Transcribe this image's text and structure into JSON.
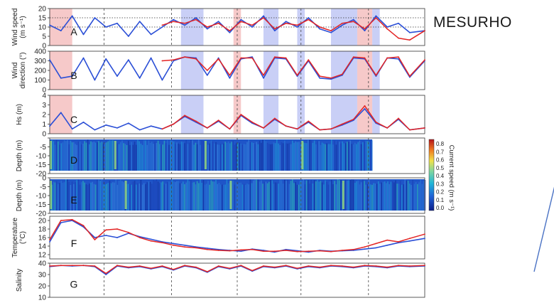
{
  "slide_title": "MESURHO",
  "colors": {
    "obs": "#2b4fd6",
    "model": "#e32424",
    "highlight_red": "#f6c9c9",
    "highlight_blue": "#c9cff6",
    "arrow": "#4a72c4"
  },
  "chart_data": {
    "type": "line",
    "time_axis": {
      "range": [
        0,
        1
      ],
      "tick_labels": []
    },
    "highlight_spans": [
      {
        "color": "red",
        "from": 0.0,
        "to": 0.06
      },
      {
        "color": "blue",
        "from": 0.35,
        "to": 0.41
      },
      {
        "color": "red",
        "from": 0.49,
        "to": 0.51
      },
      {
        "color": "blue",
        "from": 0.57,
        "to": 0.61
      },
      {
        "color": "blue",
        "from": 0.66,
        "to": 0.68
      },
      {
        "color": "blue",
        "from": 0.75,
        "to": 0.82
      },
      {
        "color": "red",
        "from": 0.82,
        "to": 0.86
      },
      {
        "color": "blue",
        "from": 0.86,
        "to": 0.88
      }
    ],
    "panels": [
      {
        "letter": "A",
        "ylabel": [
          "Wind speed",
          "(m s⁻¹)"
        ],
        "ylim": [
          0,
          20
        ],
        "yticks": [
          0,
          5,
          10,
          15,
          20
        ],
        "ref_lines": [
          15,
          10
        ],
        "series": [
          {
            "role": "obs",
            "x": [
              0,
              0.03,
              0.06,
              0.09,
              0.12,
              0.15,
              0.18,
              0.21,
              0.24,
              0.27,
              0.3,
              0.33,
              0.36,
              0.39,
              0.42,
              0.45,
              0.48,
              0.51,
              0.54,
              0.57,
              0.6,
              0.63,
              0.66,
              0.69,
              0.72,
              0.75,
              0.78,
              0.81,
              0.84,
              0.87,
              0.9,
              0.93,
              0.96,
              1.0
            ],
            "y": [
              11,
              8,
              16,
              6,
              15,
              10,
              12,
              5,
              13,
              6,
              10,
              14,
              11,
              15,
              9,
              13,
              7,
              14,
              10,
              16,
              8,
              13,
              10,
              15,
              9,
              7,
              11,
              14,
              8,
              16,
              10,
              12,
              7,
              8
            ]
          },
          {
            "role": "model",
            "x": [
              0.3,
              0.33,
              0.36,
              0.39,
              0.42,
              0.45,
              0.48,
              0.51,
              0.54,
              0.57,
              0.6,
              0.63,
              0.66,
              0.69,
              0.72,
              0.75,
              0.78,
              0.81,
              0.84,
              0.87,
              0.9,
              0.93,
              0.96,
              1.0
            ],
            "y": [
              11,
              13,
              12,
              14,
              10,
              12,
              8,
              13,
              11,
              15,
              9,
              12,
              11,
              14,
              10,
              8,
              12,
              13,
              9,
              15,
              9,
              4,
              3,
              8
            ]
          }
        ]
      },
      {
        "letter": "B",
        "ylabel": [
          "Wind",
          "direction (°)"
        ],
        "ylim": [
          0,
          400
        ],
        "yticks": [
          0,
          100,
          200,
          300,
          400
        ],
        "series": [
          {
            "role": "obs",
            "x": [
              0,
              0.03,
              0.06,
              0.09,
              0.12,
              0.15,
              0.18,
              0.21,
              0.24,
              0.27,
              0.3,
              0.33,
              0.36,
              0.39,
              0.42,
              0.45,
              0.48,
              0.51,
              0.54,
              0.57,
              0.6,
              0.63,
              0.66,
              0.69,
              0.72,
              0.75,
              0.78,
              0.81,
              0.84,
              0.87,
              0.9,
              0.93,
              0.96,
              1.0
            ],
            "y": [
              310,
              120,
              140,
              330,
              100,
              320,
              140,
              310,
              120,
              330,
              100,
              300,
              340,
              330,
              150,
              330,
              120,
              320,
              340,
              120,
              330,
              320,
              140,
              300,
              120,
              110,
              150,
              330,
              320,
              140,
              330,
              320,
              130,
              300
            ]
          },
          {
            "role": "model",
            "x": [
              0.3,
              0.33,
              0.36,
              0.39,
              0.42,
              0.45,
              0.48,
              0.51,
              0.54,
              0.57,
              0.6,
              0.63,
              0.66,
              0.69,
              0.72,
              0.75,
              0.78,
              0.81,
              0.84,
              0.87,
              0.9,
              0.93,
              0.96,
              1.0
            ],
            "y": [
              300,
              310,
              340,
              320,
              200,
              320,
              150,
              330,
              330,
              150,
              340,
              330,
              150,
              310,
              140,
              120,
              160,
              340,
              330,
              150,
              330,
              340,
              140,
              310
            ]
          }
        ]
      },
      {
        "letter": "C",
        "ylabel": [
          "Hs (m)"
        ],
        "ylim": [
          0,
          4
        ],
        "yticks": [
          0,
          1,
          2,
          3,
          4
        ],
        "series": [
          {
            "role": "obs",
            "x": [
              0,
              0.03,
              0.06,
              0.09,
              0.12,
              0.15,
              0.18,
              0.21,
              0.24,
              0.27,
              0.3,
              0.33,
              0.36,
              0.39,
              0.42,
              0.45,
              0.48,
              0.51,
              0.54,
              0.57,
              0.6,
              0.63,
              0.66,
              0.69,
              0.72,
              0.75,
              0.78,
              0.81,
              0.84,
              0.87,
              0.9,
              0.93,
              0.96,
              1.0
            ],
            "y": [
              0.8,
              2.2,
              0.5,
              1.2,
              0.4,
              0.9,
              0.6,
              1.1,
              0.4,
              0.8,
              0.5,
              1.0,
              1.8,
              1.2,
              0.6,
              1.3,
              0.5,
              1.9,
              1.1,
              0.6,
              1.5,
              0.8,
              0.5,
              1.2,
              0.4,
              0.5,
              0.9,
              1.4,
              2.6,
              1.1,
              0.6,
              1.5,
              0.4,
              0.6
            ]
          },
          {
            "role": "model",
            "x": [
              0.3,
              0.33,
              0.36,
              0.39,
              0.42,
              0.45,
              0.48,
              0.51,
              0.54,
              0.57,
              0.6,
              0.63,
              0.66,
              0.69,
              0.72,
              0.75,
              0.78,
              0.81,
              0.84,
              0.87,
              0.9,
              0.93,
              0.96,
              1.0
            ],
            "y": [
              0.5,
              1.0,
              1.9,
              1.3,
              0.6,
              1.4,
              0.5,
              2.0,
              1.2,
              0.6,
              1.6,
              0.8,
              0.5,
              1.3,
              0.4,
              0.5,
              1.0,
              1.5,
              2.9,
              1.2,
              0.6,
              1.6,
              0.4,
              0.6
            ]
          }
        ]
      },
      {
        "letter": "D",
        "ylabel": [
          "Depth (m)"
        ],
        "kind": "heatmap",
        "ylim": [
          -20,
          0
        ],
        "yticks": [
          -20,
          -15,
          -10,
          -5,
          0
        ],
        "ytick_labels": [
          "-20",
          "-15",
          "-10",
          "-5",
          ""
        ],
        "data_extent": [
          0,
          0.86
        ]
      },
      {
        "letter": "E",
        "ylabel": [
          "Depth (m)"
        ],
        "kind": "heatmap",
        "ylim": [
          -20,
          0
        ],
        "yticks": [
          -20,
          -15,
          -10,
          -5,
          0
        ],
        "ytick_labels": [
          "-20",
          "-15",
          "-10",
          "-5",
          "0"
        ],
        "data_extent": [
          0,
          1
        ]
      },
      {
        "letter": "F",
        "ylabel": [
          "Temperature",
          "(°C)"
        ],
        "ylim": [
          11,
          21
        ],
        "yticks": [
          12,
          14,
          16,
          18,
          20
        ],
        "series": [
          {
            "role": "obs",
            "x": [
              0,
              0.03,
              0.06,
              0.09,
              0.12,
              0.15,
              0.18,
              0.21,
              0.24,
              0.27,
              0.3,
              0.33,
              0.36,
              0.39,
              0.42,
              0.45,
              0.48,
              0.51,
              0.54,
              0.57,
              0.6,
              0.63,
              0.66,
              0.69,
              0.72,
              0.75,
              0.78,
              0.81,
              0.84,
              0.87,
              0.9,
              0.93,
              0.96,
              1.0
            ],
            "y": [
              15,
              19.5,
              20,
              18.5,
              16,
              16.5,
              16,
              17,
              16.2,
              15.6,
              15,
              14.6,
              14.2,
              13.8,
              13.5,
              13.2,
              13.0,
              12.8,
              13.3,
              13.0,
              12.6,
              13.2,
              12.9,
              12.6,
              13.0,
              12.8,
              12.9,
              13.0,
              13.3,
              13.6,
              14.2,
              14.8,
              15.2,
              15.8
            ]
          },
          {
            "role": "model",
            "x": [
              0,
              0.03,
              0.06,
              0.09,
              0.12,
              0.15,
              0.18,
              0.21,
              0.24,
              0.27,
              0.3,
              0.33,
              0.36,
              0.39,
              0.42,
              0.45,
              0.48,
              0.51,
              0.54,
              0.57,
              0.6,
              0.63,
              0.66,
              0.69,
              0.72,
              0.75,
              0.78,
              0.81,
              0.84,
              0.87,
              0.9,
              0.93,
              0.96,
              1.0
            ],
            "y": [
              15.5,
              20,
              20.2,
              18.8,
              15.5,
              17.8,
              18.0,
              17.2,
              16.0,
              15.2,
              14.8,
              14.2,
              13.8,
              13.6,
              13.2,
              13.0,
              12.9,
              13.1,
              13.2,
              12.8,
              12.8,
              13.0,
              12.7,
              12.8,
              12.9,
              12.7,
              13.0,
              13.2,
              13.8,
              14.6,
              15.4,
              15.0,
              15.8,
              16.8
            ]
          }
        ]
      },
      {
        "letter": "G",
        "ylabel": [
          "Salinity"
        ],
        "ylim": [
          10,
          40
        ],
        "yticks": [
          10,
          20,
          30,
          40
        ],
        "series": [
          {
            "role": "obs",
            "x": [
              0,
              0.03,
              0.06,
              0.09,
              0.12,
              0.15,
              0.18,
              0.21,
              0.24,
              0.27,
              0.3,
              0.33,
              0.36,
              0.39,
              0.42,
              0.45,
              0.48,
              0.51,
              0.54,
              0.57,
              0.6,
              0.63,
              0.66,
              0.69,
              0.72,
              0.75,
              0.78,
              0.81,
              0.84,
              0.87,
              0.9,
              0.93,
              0.96,
              1.0
            ],
            "y": [
              37,
              38,
              37.5,
              38,
              37,
              30,
              37.5,
              36,
              37,
              35,
              37,
              34,
              37.5,
              36,
              32,
              37,
              35,
              37.5,
              33,
              37,
              36,
              37.5,
              35,
              37,
              36,
              37.5,
              37,
              36,
              37.5,
              37,
              36,
              37.5,
              37,
              37.5
            ]
          },
          {
            "role": "model",
            "x": [
              0,
              0.03,
              0.06,
              0.09,
              0.12,
              0.15,
              0.18,
              0.21,
              0.24,
              0.27,
              0.3,
              0.33,
              0.36,
              0.39,
              0.42,
              0.45,
              0.48,
              0.51,
              0.54,
              0.57,
              0.6,
              0.63,
              0.66,
              0.69,
              0.72,
              0.75,
              0.78,
              0.81,
              0.84,
              0.87,
              0.9,
              0.93,
              0.96,
              1.0
            ],
            "y": [
              37.5,
              38,
              38,
              38,
              37.5,
              31,
              38,
              36.5,
              37.5,
              35.5,
              37.5,
              34.5,
              38,
              36.5,
              32.5,
              37.5,
              35.5,
              38,
              33.5,
              37.5,
              36.5,
              38,
              35.5,
              37.5,
              36.5,
              38,
              37.5,
              36.5,
              38,
              37.5,
              36.5,
              38,
              37.5,
              38
            ]
          }
        ]
      }
    ],
    "colorbar": {
      "label": "Current speed (m s⁻¹)",
      "range": [
        0,
        0.8
      ],
      "ticks": [
        "0.8",
        "0.7",
        "0.6",
        "0.5",
        "0.4",
        "0.3",
        "0.2",
        "0.1",
        "0.0"
      ]
    }
  }
}
